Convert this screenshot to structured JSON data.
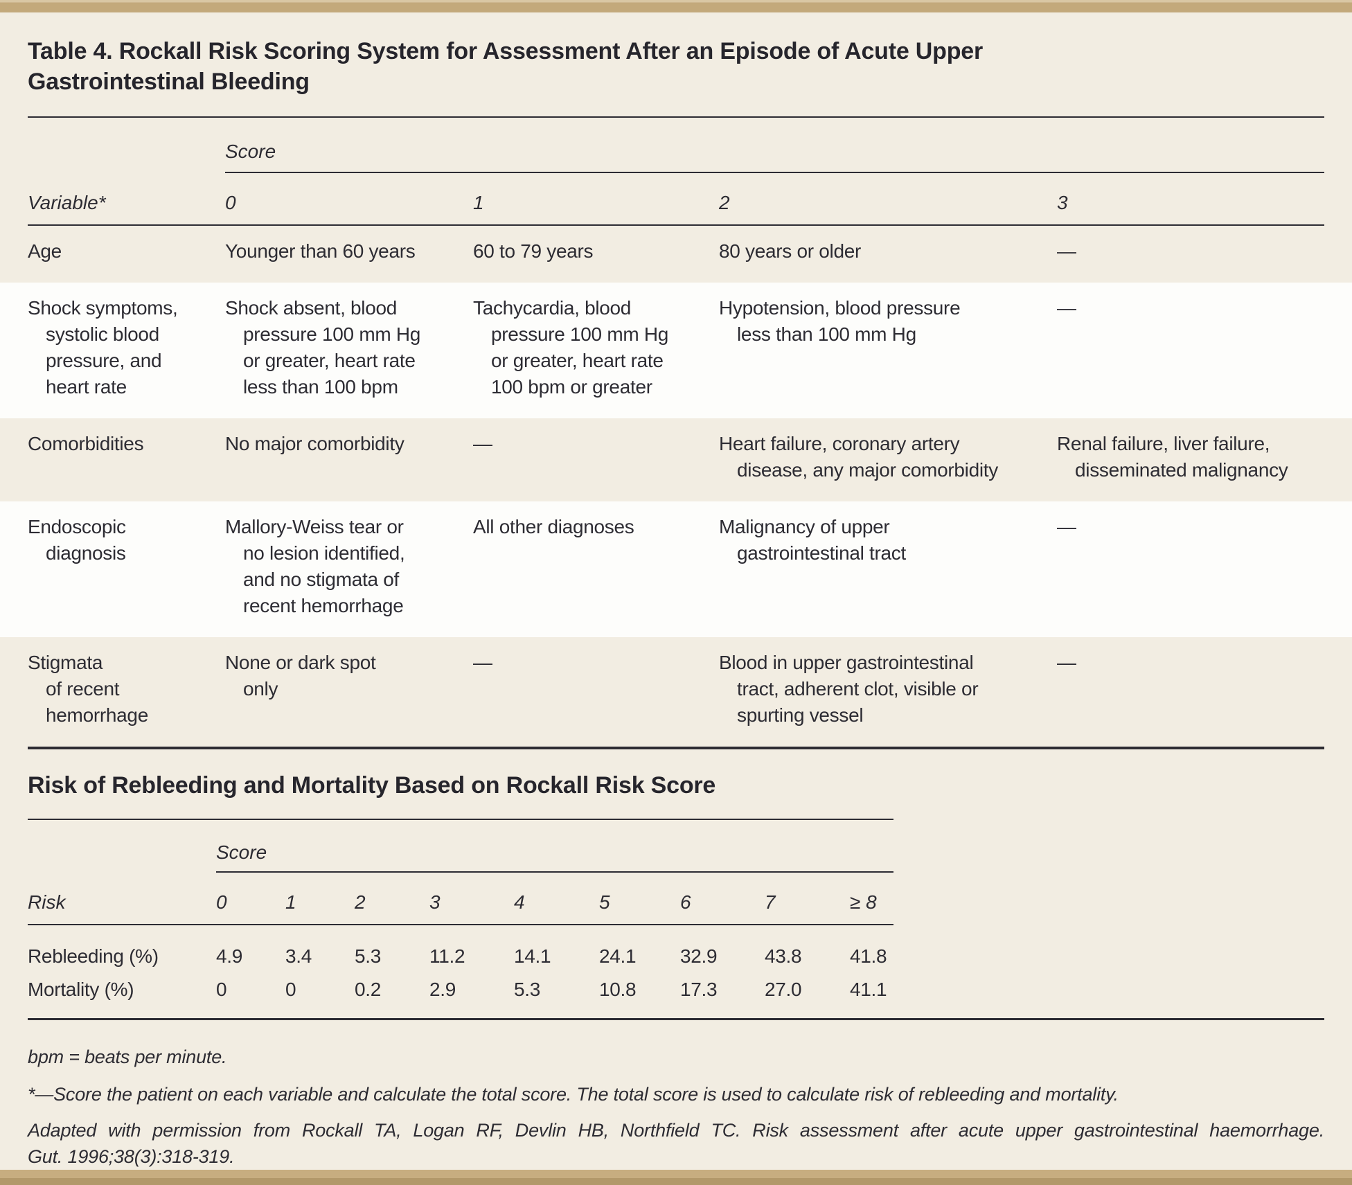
{
  "title": "Table 4. Rockall Risk Scoring System for Assessment After an Episode of Acute Upper\nGastrointestinal Bleeding",
  "scoring_table": {
    "score_group_label": "Score",
    "variable_header": "Variable*",
    "score_headers": [
      "0",
      "1",
      "2",
      "3"
    ],
    "rows": [
      {
        "variable": "Age",
        "scores": [
          "Younger than 60 years",
          "60 to 79 years",
          "80 years or older",
          "—"
        ]
      },
      {
        "variable": "Shock symptoms,\nsystolic blood\npressure, and\nheart rate",
        "scores": [
          "Shock absent, blood\npressure 100 mm Hg\nor greater, heart rate\nless than 100 bpm",
          "Tachycardia, blood\npressure 100 mm Hg\nor greater, heart rate\n100 bpm or greater",
          "Hypotension, blood pressure\nless than 100 mm Hg",
          "—"
        ]
      },
      {
        "variable": "Comorbidities",
        "scores": [
          "No major comorbidity",
          "—",
          "Heart failure, coronary artery\ndisease, any major comorbidity",
          "Renal failure, liver failure,\ndisseminated malignancy"
        ]
      },
      {
        "variable": "Endoscopic\ndiagnosis",
        "scores": [
          "Mallory-Weiss tear or\nno lesion identified,\nand no stigmata of\nrecent hemorrhage",
          "All other diagnoses",
          "Malignancy of upper\ngastrointestinal tract",
          "—"
        ]
      },
      {
        "variable": "Stigmata\nof recent\nhemorrhage",
        "scores": [
          "None or dark spot\nonly",
          "—",
          "Blood in upper gastrointestinal\ntract, adherent clot, visible or\nspurting vessel",
          "—"
        ]
      }
    ]
  },
  "risk_table": {
    "heading": "Risk of Rebleeding and Mortality Based on Rockall Risk Score",
    "score_group_label": "Score",
    "risk_header": "Risk",
    "score_headers": [
      "0",
      "1",
      "2",
      "3",
      "4",
      "5",
      "6",
      "7",
      "≥ 8"
    ],
    "rows": [
      {
        "label": "Rebleeding (%)",
        "values": [
          "4.9",
          "3.4",
          "5.3",
          "11.2",
          "14.1",
          "24.1",
          "32.9",
          "43.8",
          "41.8"
        ]
      },
      {
        "label": "Mortality (%)",
        "values": [
          "0",
          "0",
          "0.2",
          "2.9",
          "5.3",
          "10.8",
          "17.3",
          "27.0",
          "41.1"
        ]
      }
    ]
  },
  "footnotes": {
    "abbreviation": "bpm = beats per minute.",
    "asterisk": "*—Score the patient on each variable and calculate the total score. The total score is used to calculate risk of rebleeding and mortality.",
    "attribution_line1": "Adapted with permission from Rockall TA, Logan RF, Devlin HB, Northfield TC. Risk assessment after acute upper gastrointestinal haemorrhage.",
    "attribution_line2": "Gut. 1996;38(3):318-319."
  },
  "colors": {
    "page_background": "#f2ede2",
    "row_highlight": "#fdfdfb",
    "accent_bar": "#c3a97b",
    "text": "#2d2c33"
  }
}
